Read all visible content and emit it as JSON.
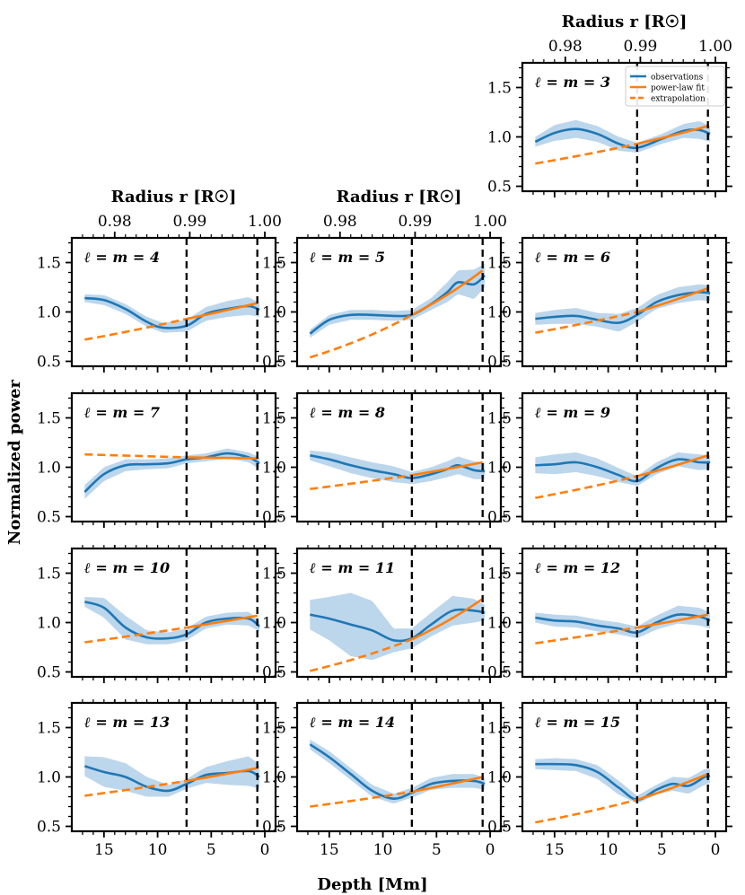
{
  "figure": {
    "ylabel": "Normalized power",
    "xlabel": "Depth [Mm]",
    "top_axis_label": "Radius r [R☉]",
    "legend": {
      "observations": "observations",
      "fit": "power-law fit",
      "extrapolation": "extrapolation"
    },
    "colors": {
      "observations": "#1f77b4",
      "band": "#a6c8e6",
      "fit": "#ff7f0e",
      "vline": "#000000"
    }
  },
  "chart_data": {
    "type": "line",
    "x_label": "Depth [Mm]",
    "x_range": [
      18,
      -1
    ],
    "x_ticks": [
      15,
      10,
      5,
      0
    ],
    "y_label": "Normalized power",
    "y_range": [
      0.45,
      1.75
    ],
    "y_ticks": [
      0.5,
      1.0,
      1.5
    ],
    "top_axis": {
      "label": "Radius r [R☉]",
      "ticks": [
        0.98,
        0.99,
        1.0
      ],
      "depth_at_tick": [
        14.0,
        7.0,
        0.0
      ]
    },
    "vertical_lines_depth": [
      7.3,
      0.7
    ],
    "panels": [
      {
        "label": "ℓ = m = 3",
        "obs_depth": [
          16.8,
          15,
          13,
          11,
          9,
          7.3,
          5,
          3,
          1.5,
          0.5
        ],
        "obs": [
          0.95,
          1.04,
          1.08,
          1.03,
          0.93,
          0.89,
          0.98,
          1.06,
          1.07,
          1.03
        ],
        "band": [
          0.05,
          0.08,
          0.09,
          0.08,
          0.07,
          0.05,
          0.05,
          0.07,
          0.09,
          0.08
        ],
        "fit_start": 0.73,
        "fit_mid": 0.93,
        "fit_end": 1.11
      },
      {
        "label": "ℓ = m = 4",
        "obs_depth": [
          16.8,
          15,
          13,
          11,
          9.5,
          7.3,
          5.5,
          3.5,
          1.5,
          0.5
        ],
        "obs": [
          1.14,
          1.12,
          1.03,
          0.9,
          0.84,
          0.86,
          0.98,
          1.03,
          1.06,
          1.02
        ],
        "band": [
          0.04,
          0.05,
          0.05,
          0.05,
          0.05,
          0.06,
          0.07,
          0.08,
          0.09,
          0.07
        ],
        "fit_start": 0.72,
        "fit_mid": 0.93,
        "fit_end": 1.09
      },
      {
        "label": "ℓ = m = 5",
        "obs_depth": [
          16.8,
          15,
          13,
          11,
          9,
          7.3,
          5.5,
          4,
          3,
          1.5,
          0.5
        ],
        "obs": [
          0.78,
          0.92,
          0.97,
          0.97,
          0.96,
          0.97,
          1.08,
          1.2,
          1.3,
          1.28,
          1.37
        ],
        "band": [
          0.04,
          0.05,
          0.05,
          0.05,
          0.05,
          0.05,
          0.06,
          0.1,
          0.12,
          0.15,
          0.12
        ],
        "fit_start": 0.54,
        "fit_mid": 0.97,
        "fit_end": 1.42
      },
      {
        "label": "ℓ = m = 6",
        "obs_depth": [
          16.8,
          15,
          13,
          11,
          9,
          7.3,
          5.5,
          3.5,
          1.5,
          0.5
        ],
        "obs": [
          0.93,
          0.95,
          0.96,
          0.92,
          0.89,
          0.97,
          1.1,
          1.17,
          1.2,
          1.19
        ],
        "band": [
          0.06,
          0.07,
          0.08,
          0.07,
          0.09,
          0.07,
          0.07,
          0.08,
          0.08,
          0.08
        ],
        "fit_start": 0.79,
        "fit_mid": 1.0,
        "fit_end": 1.24
      },
      {
        "label": "ℓ = m = 7",
        "obs_depth": [
          16.8,
          15,
          13,
          11,
          9,
          7.3,
          5.5,
          3.5,
          1.5,
          0.5
        ],
        "obs": [
          0.75,
          0.93,
          1.02,
          1.03,
          1.04,
          1.08,
          1.1,
          1.14,
          1.1,
          1.04
        ],
        "band": [
          0.07,
          0.07,
          0.06,
          0.05,
          0.05,
          0.04,
          0.04,
          0.05,
          0.05,
          0.06
        ],
        "fit_start": 1.13,
        "fit_mid": 1.1,
        "fit_end": 1.09
      },
      {
        "label": "ℓ = m = 8",
        "obs_depth": [
          16.8,
          15,
          13,
          11,
          9,
          7.3,
          5.5,
          4,
          3,
          1.5,
          0.5
        ],
        "obs": [
          1.12,
          1.08,
          1.02,
          0.97,
          0.93,
          0.89,
          0.93,
          0.98,
          1.02,
          0.97,
          0.96
        ],
        "band": [
          0.05,
          0.07,
          0.08,
          0.08,
          0.08,
          0.06,
          0.07,
          0.08,
          0.09,
          0.09,
          0.08
        ],
        "fit_start": 0.78,
        "fit_mid": 0.92,
        "fit_end": 1.05
      },
      {
        "label": "ℓ = m = 9",
        "obs_depth": [
          16.8,
          15,
          13,
          11,
          9,
          7.3,
          5.5,
          3.5,
          1.5,
          0.5
        ],
        "obs": [
          1.02,
          1.03,
          1.05,
          1.0,
          0.92,
          0.86,
          0.99,
          1.08,
          1.05,
          1.05
        ],
        "band": [
          0.08,
          0.1,
          0.1,
          0.09,
          0.07,
          0.05,
          0.06,
          0.07,
          0.08,
          0.07
        ],
        "fit_start": 0.69,
        "fit_mid": 0.91,
        "fit_end": 1.12
      },
      {
        "label": "ℓ = m = 10",
        "obs_depth": [
          16.8,
          15,
          13,
          11,
          9,
          7.3,
          5.5,
          3.5,
          1.5,
          0.5
        ],
        "obs": [
          1.21,
          1.15,
          0.95,
          0.85,
          0.84,
          0.88,
          1.0,
          1.04,
          1.04,
          0.96
        ],
        "band": [
          0.05,
          0.1,
          0.12,
          0.07,
          0.06,
          0.06,
          0.06,
          0.06,
          0.07,
          0.05
        ],
        "fit_start": 0.8,
        "fit_mid": 0.95,
        "fit_end": 1.07
      },
      {
        "label": "ℓ = m = 11",
        "obs_depth": [
          16.8,
          15,
          13,
          11,
          9,
          7.3,
          5.5,
          3.5,
          1.5,
          0.5
        ],
        "obs": [
          1.08,
          1.04,
          0.98,
          0.92,
          0.82,
          0.84,
          0.98,
          1.12,
          1.12,
          1.1
        ],
        "band": [
          0.15,
          0.22,
          0.32,
          0.3,
          0.12,
          0.1,
          0.12,
          0.15,
          0.12,
          0.08
        ],
        "fit_start": 0.51,
        "fit_mid": 0.83,
        "fit_end": 1.24
      },
      {
        "label": "ℓ = m = 12",
        "obs_depth": [
          16.8,
          15,
          13,
          11,
          9,
          7.3,
          5.5,
          3.5,
          1.5,
          0.5
        ],
        "obs": [
          1.05,
          1.02,
          1.01,
          0.97,
          0.94,
          0.9,
          1.0,
          1.08,
          1.06,
          1.02
        ],
        "band": [
          0.05,
          0.06,
          0.06,
          0.06,
          0.06,
          0.06,
          0.07,
          0.09,
          0.09,
          0.08
        ],
        "fit_start": 0.79,
        "fit_mid": 0.95,
        "fit_end": 1.08
      },
      {
        "label": "ℓ = m = 13",
        "obs_depth": [
          16.8,
          15,
          13,
          11,
          9,
          7.3,
          5.5,
          3.5,
          1.5,
          0.5
        ],
        "obs": [
          1.11,
          1.05,
          1.0,
          0.9,
          0.86,
          0.93,
          1.02,
          1.04,
          1.06,
          1.0
        ],
        "band": [
          0.1,
          0.15,
          0.14,
          0.1,
          0.06,
          0.05,
          0.08,
          0.12,
          0.15,
          0.12
        ],
        "fit_start": 0.81,
        "fit_mid": 0.96,
        "fit_end": 1.09
      },
      {
        "label": "ℓ = m = 14",
        "obs_depth": [
          16.8,
          15,
          13,
          11,
          9,
          7.3,
          5.5,
          3.5,
          1.5,
          0.5
        ],
        "obs": [
          1.33,
          1.2,
          1.03,
          0.86,
          0.78,
          0.84,
          0.93,
          0.96,
          0.96,
          0.93
        ],
        "band": [
          0.05,
          0.06,
          0.06,
          0.06,
          0.05,
          0.05,
          0.06,
          0.07,
          0.07,
          0.06
        ],
        "fit_start": 0.7,
        "fit_mid": 0.85,
        "fit_end": 1.0
      },
      {
        "label": "ℓ = m = 15",
        "obs_depth": [
          16.8,
          15,
          13,
          11,
          9,
          7.3,
          5.5,
          4,
          2.5,
          1,
          0.5
        ],
        "obs": [
          1.13,
          1.13,
          1.12,
          1.05,
          0.89,
          0.77,
          0.87,
          0.93,
          0.91,
          1.0,
          1.01
        ],
        "band": [
          0.05,
          0.06,
          0.06,
          0.07,
          0.07,
          0.04,
          0.05,
          0.07,
          0.08,
          0.08,
          0.07
        ],
        "fit_start": 0.54,
        "fit_mid": 0.77,
        "fit_end": 1.03
      }
    ]
  }
}
